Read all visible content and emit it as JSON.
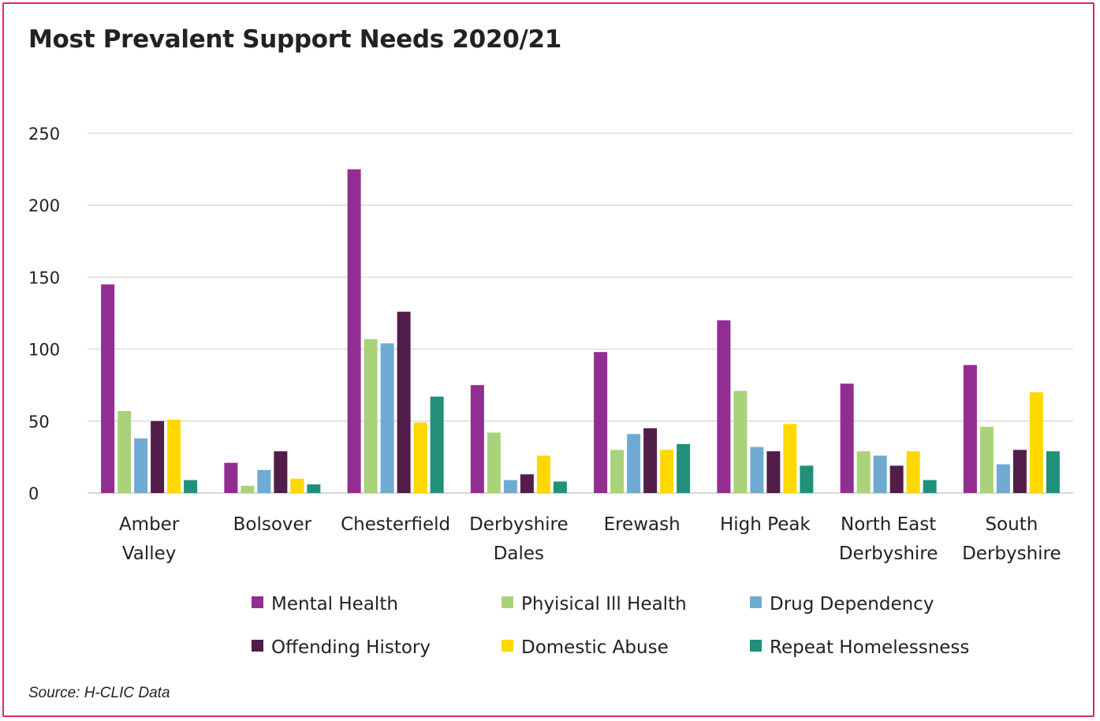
{
  "title": "Most Prevalent Support Needs 2020/21",
  "source": "Source: H-CLIC Data",
  "colors": {
    "frame_border": "#e0246e",
    "gridline": "#d9d9d9",
    "text": "#222222"
  },
  "chart_data": {
    "type": "bar",
    "title": "Most Prevalent Support Needs 2020/21",
    "xlabel": "",
    "ylabel": "",
    "ylim": [
      0,
      250
    ],
    "yticks": [
      0,
      50,
      100,
      150,
      200,
      250
    ],
    "grid": true,
    "legend_position": "bottom",
    "categories": [
      [
        "Amber",
        "Valley"
      ],
      [
        "Bolsover"
      ],
      [
        "Chesterfield"
      ],
      [
        "Derbyshire",
        "Dales"
      ],
      [
        "Erewash"
      ],
      [
        "High Peak"
      ],
      [
        "North East",
        "Derbyshire"
      ],
      [
        "South",
        "Derbyshire"
      ]
    ],
    "series": [
      {
        "name": "Mental Health",
        "color": "#922d92",
        "values": [
          145,
          21,
          225,
          75,
          98,
          120,
          76,
          89
        ]
      },
      {
        "name": "Phyisical Ill Health",
        "color": "#a9d27a",
        "values": [
          57,
          5,
          107,
          42,
          30,
          71,
          29,
          46
        ]
      },
      {
        "name": "Drug Dependency",
        "color": "#6faad3",
        "values": [
          38,
          16,
          104,
          9,
          41,
          32,
          26,
          20
        ]
      },
      {
        "name": "Offending History",
        "color": "#521d48",
        "values": [
          50,
          29,
          126,
          13,
          45,
          29,
          19,
          30
        ]
      },
      {
        "name": "Domestic Abuse",
        "color": "#ffd800",
        "values": [
          51,
          10,
          49,
          26,
          30,
          48,
          29,
          70
        ]
      },
      {
        "name": "Repeat Homelessness",
        "color": "#20907a",
        "values": [
          9,
          6,
          67,
          8,
          34,
          19,
          9,
          29
        ]
      }
    ]
  }
}
